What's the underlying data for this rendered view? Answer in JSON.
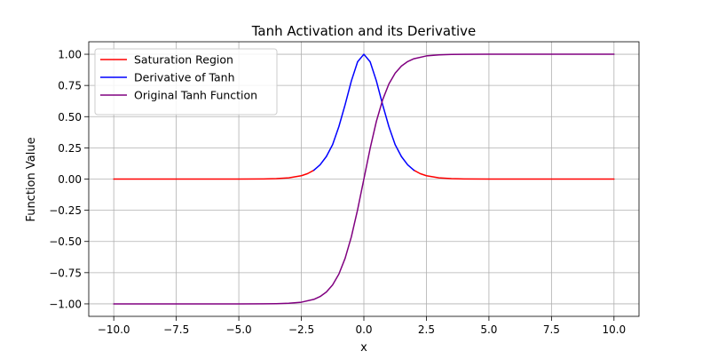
{
  "chart_data": {
    "type": "line",
    "title": "Tanh Activation and its Derivative",
    "xlabel": "x",
    "ylabel": "Function Value",
    "xlim": [
      -11.0,
      11.0
    ],
    "ylim": [
      -1.1,
      1.1
    ],
    "grid": true,
    "legend_position": "top-left",
    "x_ticks": [
      {
        "value": -10.0,
        "label": "−10.0"
      },
      {
        "value": -7.5,
        "label": "−7.5"
      },
      {
        "value": -5.0,
        "label": "−5.0"
      },
      {
        "value": -2.5,
        "label": "−2.5"
      },
      {
        "value": 0.0,
        "label": "0.0"
      },
      {
        "value": 2.5,
        "label": "2.5"
      },
      {
        "value": 5.0,
        "label": "5.0"
      },
      {
        "value": 7.5,
        "label": "7.5"
      },
      {
        "value": 10.0,
        "label": "10.0"
      }
    ],
    "y_ticks": [
      {
        "value": -1.0,
        "label": "−1.00"
      },
      {
        "value": -0.75,
        "label": "−0.75"
      },
      {
        "value": -0.5,
        "label": "−0.50"
      },
      {
        "value": -0.25,
        "label": "−0.25"
      },
      {
        "value": 0.0,
        "label": "0.00"
      },
      {
        "value": 0.25,
        "label": "0.25"
      },
      {
        "value": 0.5,
        "label": "0.50"
      },
      {
        "value": 0.75,
        "label": "0.75"
      },
      {
        "value": 1.0,
        "label": "1.00"
      }
    ],
    "series": [
      {
        "name": "Saturation Region",
        "color": "#ff0000",
        "segments": [
          {
            "x": [
              -10.0,
              -8.0,
              -6.0,
              -5.0,
              -4.0,
              -3.5,
              -3.0,
              -2.5,
              -2.25,
              -2.0
            ],
            "y": [
              0.0,
              0.0,
              0.0,
              0.0002,
              0.0013,
              0.0036,
              0.0099,
              0.0266,
              0.0437,
              0.0707
            ]
          },
          {
            "x": [
              2.0,
              2.25,
              2.5,
              3.0,
              3.5,
              4.0,
              5.0,
              6.0,
              8.0,
              10.0
            ],
            "y": [
              0.0707,
              0.0437,
              0.0266,
              0.0099,
              0.0036,
              0.0013,
              0.0002,
              0.0,
              0.0,
              0.0
            ]
          }
        ]
      },
      {
        "name": "Derivative of Tanh",
        "color": "#0000ff",
        "segments": [
          {
            "x": [
              -2.0,
              -1.75,
              -1.5,
              -1.25,
              -1.0,
              -0.75,
              -0.5,
              -0.25,
              0.0,
              0.25,
              0.5,
              0.75,
              1.0,
              1.25,
              1.5,
              1.75,
              2.0
            ],
            "y": [
              0.0707,
              0.1145,
              0.1807,
              0.2757,
              0.42,
              0.5959,
              0.7864,
              0.9401,
              1.0,
              0.9401,
              0.7864,
              0.5959,
              0.42,
              0.2757,
              0.1807,
              0.1145,
              0.0707
            ]
          }
        ]
      },
      {
        "name": "Original Tanh Function",
        "color": "#800080",
        "segments": [
          {
            "x": [
              -10.0,
              -6.0,
              -5.0,
              -4.0,
              -3.5,
              -3.0,
              -2.5,
              -2.0,
              -1.75,
              -1.5,
              -1.25,
              -1.0,
              -0.75,
              -0.5,
              -0.25,
              0.0,
              0.25,
              0.5,
              0.75,
              1.0,
              1.25,
              1.5,
              1.75,
              2.0,
              2.5,
              3.0,
              3.5,
              4.0,
              5.0,
              6.0,
              10.0
            ],
            "y": [
              -1.0,
              -1.0,
              -0.9999,
              -0.9993,
              -0.9982,
              -0.9951,
              -0.9866,
              -0.964,
              -0.9414,
              -0.9051,
              -0.8483,
              -0.7616,
              -0.6351,
              -0.4621,
              -0.2449,
              0.0,
              0.2449,
              0.4621,
              0.6351,
              0.7616,
              0.8483,
              0.9051,
              0.9414,
              0.964,
              0.9866,
              0.9951,
              0.9982,
              0.9993,
              0.9999,
              1.0,
              1.0
            ]
          }
        ]
      }
    ]
  }
}
